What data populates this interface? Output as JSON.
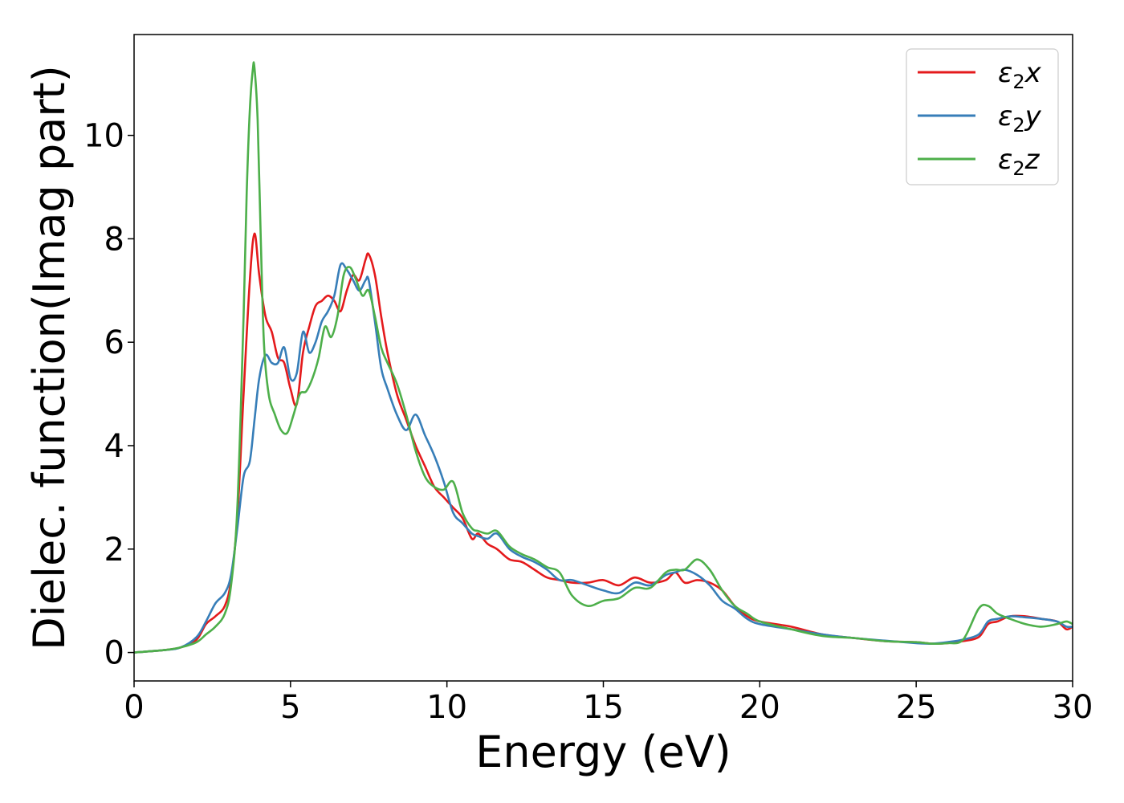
{
  "chart_data": {
    "type": "line",
    "title": "",
    "xlabel": "Energy (eV)",
    "ylabel": "Dielec. function(Imag part)",
    "xlim": [
      0,
      30
    ],
    "ylim": [
      -0.55,
      11.95
    ],
    "xticks": [
      0,
      5,
      10,
      15,
      20,
      25,
      30
    ],
    "yticks": [
      0,
      2,
      4,
      6,
      8,
      10
    ],
    "xtick_labels": [
      "0",
      "5",
      "10",
      "15",
      "20",
      "25",
      "30"
    ],
    "ytick_labels": [
      "0",
      "2",
      "4",
      "6",
      "8",
      "10"
    ],
    "grid": false,
    "legend_position": "top-right",
    "series": [
      {
        "name": "ε₂x",
        "legend_base": "ε",
        "legend_sub": "2",
        "legend_suffix": "x",
        "color": "#e41a1c",
        "x": [
          0,
          1,
          1.5,
          2,
          2.3,
          2.6,
          2.9,
          3.1,
          3.3,
          3.5,
          3.7,
          3.85,
          4.0,
          4.2,
          4.4,
          4.6,
          4.8,
          5.0,
          5.2,
          5.4,
          5.6,
          5.8,
          6.0,
          6.2,
          6.4,
          6.6,
          6.8,
          7.0,
          7.2,
          7.4,
          7.5,
          7.7,
          7.9,
          8.1,
          8.4,
          8.7,
          9.0,
          9.3,
          9.6,
          9.9,
          10.2,
          10.5,
          10.8,
          11.0,
          11.3,
          11.6,
          12.0,
          12.4,
          12.8,
          13.2,
          13.6,
          14.0,
          14.5,
          15.0,
          15.5,
          16.0,
          16.5,
          17.0,
          17.3,
          17.6,
          18.0,
          18.4,
          18.8,
          19.2,
          19.6,
          20.0,
          21.0,
          22.0,
          23.0,
          24.0,
          25.0,
          25.5,
          26.0,
          26.5,
          27.0,
          27.3,
          27.6,
          28.0,
          28.5,
          29.0,
          29.5,
          29.8,
          30.0
        ],
        "y": [
          0,
          0.05,
          0.1,
          0.25,
          0.55,
          0.7,
          0.9,
          1.4,
          2.6,
          5.0,
          7.2,
          8.1,
          7.3,
          6.5,
          6.2,
          5.7,
          5.6,
          5.1,
          4.8,
          5.8,
          6.3,
          6.7,
          6.8,
          6.9,
          6.8,
          6.6,
          7.0,
          7.3,
          7.2,
          7.6,
          7.7,
          7.3,
          6.5,
          5.8,
          5.0,
          4.5,
          4.0,
          3.6,
          3.2,
          3.0,
          2.8,
          2.6,
          2.2,
          2.3,
          2.1,
          2.0,
          1.8,
          1.75,
          1.6,
          1.45,
          1.4,
          1.35,
          1.35,
          1.4,
          1.3,
          1.45,
          1.35,
          1.4,
          1.55,
          1.35,
          1.4,
          1.35,
          1.2,
          0.9,
          0.7,
          0.6,
          0.5,
          0.35,
          0.28,
          0.22,
          0.2,
          0.17,
          0.18,
          0.22,
          0.3,
          0.55,
          0.6,
          0.7,
          0.7,
          0.65,
          0.6,
          0.45,
          0.5
        ]
      },
      {
        "name": "ε₂y",
        "legend_base": "ε",
        "legend_sub": "2",
        "legend_suffix": "y",
        "color": "#377eb8",
        "x": [
          0,
          1,
          1.5,
          2,
          2.3,
          2.6,
          2.9,
          3.1,
          3.3,
          3.5,
          3.7,
          3.85,
          4.0,
          4.2,
          4.4,
          4.6,
          4.8,
          5.0,
          5.2,
          5.4,
          5.6,
          5.8,
          6.0,
          6.2,
          6.4,
          6.6,
          6.8,
          7.0,
          7.2,
          7.4,
          7.5,
          7.7,
          7.9,
          8.1,
          8.4,
          8.7,
          9.0,
          9.3,
          9.6,
          9.9,
          10.2,
          10.5,
          10.8,
          11.0,
          11.3,
          11.6,
          12.0,
          12.4,
          12.8,
          13.2,
          13.6,
          14.0,
          14.5,
          15.0,
          15.5,
          16.0,
          16.5,
          17.0,
          17.3,
          17.6,
          18.0,
          18.4,
          18.8,
          19.2,
          19.6,
          20.0,
          21.0,
          22.0,
          23.0,
          24.0,
          25.0,
          25.5,
          26.0,
          26.5,
          27.0,
          27.3,
          27.6,
          28.0,
          28.5,
          29.0,
          29.5,
          29.8,
          30.0
        ],
        "y": [
          0,
          0.05,
          0.1,
          0.3,
          0.6,
          0.95,
          1.15,
          1.5,
          2.4,
          3.4,
          3.7,
          4.5,
          5.3,
          5.75,
          5.6,
          5.6,
          5.9,
          5.3,
          5.4,
          6.2,
          5.8,
          6.0,
          6.4,
          6.6,
          6.9,
          7.5,
          7.4,
          7.2,
          7.0,
          7.2,
          7.2,
          6.4,
          5.5,
          5.1,
          4.6,
          4.3,
          4.6,
          4.2,
          3.8,
          3.3,
          2.7,
          2.5,
          2.3,
          2.25,
          2.2,
          2.3,
          2.0,
          1.85,
          1.75,
          1.6,
          1.4,
          1.4,
          1.3,
          1.2,
          1.15,
          1.35,
          1.3,
          1.5,
          1.55,
          1.6,
          1.5,
          1.3,
          1.0,
          0.85,
          0.65,
          0.55,
          0.45,
          0.35,
          0.28,
          0.23,
          0.18,
          0.17,
          0.2,
          0.25,
          0.35,
          0.6,
          0.65,
          0.7,
          0.68,
          0.65,
          0.6,
          0.5,
          0.5
        ]
      },
      {
        "name": "ε₂z",
        "legend_base": "ε",
        "legend_sub": "2",
        "legend_suffix": "z",
        "color": "#4daf4a",
        "x": [
          0,
          1,
          1.5,
          2,
          2.3,
          2.6,
          2.9,
          3.1,
          3.3,
          3.5,
          3.6,
          3.7,
          3.8,
          3.85,
          3.95,
          4.05,
          4.15,
          4.3,
          4.5,
          4.7,
          4.9,
          5.1,
          5.3,
          5.5,
          5.7,
          5.9,
          6.1,
          6.3,
          6.5,
          6.7,
          6.9,
          7.1,
          7.3,
          7.5,
          7.7,
          7.9,
          8.1,
          8.4,
          8.7,
          9.0,
          9.3,
          9.6,
          9.9,
          10.2,
          10.5,
          10.8,
          11.0,
          11.3,
          11.6,
          12.0,
          12.4,
          12.8,
          13.2,
          13.6,
          14.0,
          14.5,
          15.0,
          15.5,
          16.0,
          16.5,
          17.0,
          17.3,
          17.6,
          18.0,
          18.4,
          18.8,
          19.2,
          19.6,
          20.0,
          21.0,
          22.0,
          23.0,
          24.0,
          25.0,
          25.5,
          26.0,
          26.5,
          27.0,
          27.3,
          27.6,
          28.0,
          28.5,
          29.0,
          29.5,
          29.8,
          30.0
        ],
        "y": [
          0,
          0.05,
          0.1,
          0.2,
          0.35,
          0.5,
          0.75,
          1.3,
          2.8,
          6.5,
          8.9,
          10.5,
          11.3,
          11.3,
          10.3,
          8.0,
          6.0,
          5.0,
          4.6,
          4.3,
          4.25,
          4.6,
          5.0,
          5.05,
          5.3,
          5.7,
          6.3,
          6.1,
          6.5,
          7.3,
          7.45,
          7.2,
          6.9,
          7.0,
          6.5,
          5.9,
          5.6,
          5.2,
          4.6,
          3.9,
          3.4,
          3.2,
          3.15,
          3.3,
          2.7,
          2.4,
          2.35,
          2.3,
          2.35,
          2.05,
          1.9,
          1.8,
          1.65,
          1.55,
          1.1,
          0.9,
          1.0,
          1.05,
          1.25,
          1.25,
          1.55,
          1.6,
          1.6,
          1.8,
          1.6,
          1.2,
          0.9,
          0.75,
          0.6,
          0.45,
          0.32,
          0.28,
          0.22,
          0.2,
          0.17,
          0.18,
          0.25,
          0.85,
          0.9,
          0.75,
          0.65,
          0.55,
          0.5,
          0.55,
          0.6,
          0.55
        ]
      }
    ]
  }
}
